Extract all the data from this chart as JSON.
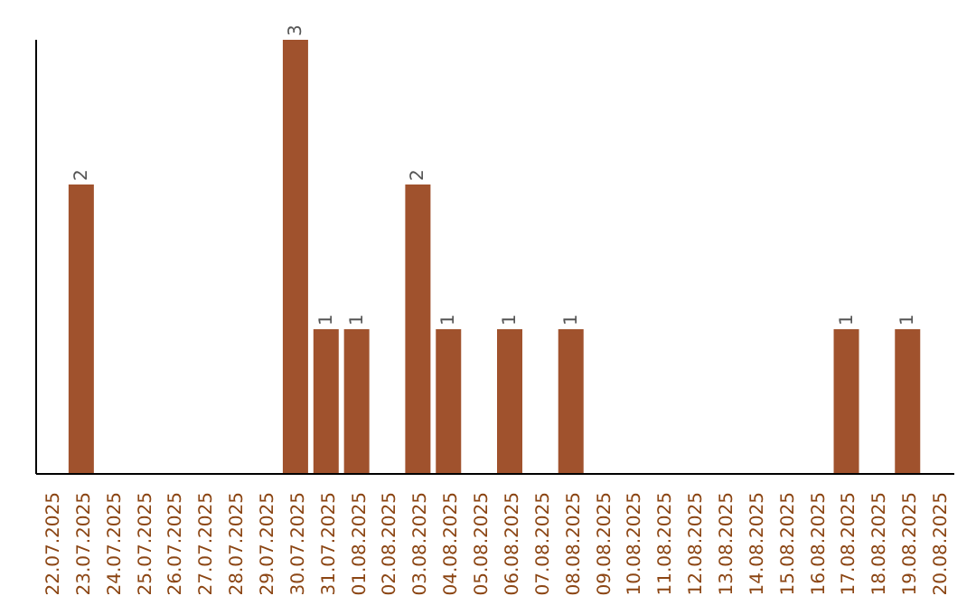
{
  "chart_data": {
    "type": "bar",
    "categories": [
      "22.07.2025",
      "23.07.2025",
      "24.07.2025",
      "25.07.2025",
      "26.07.2025",
      "27.07.2025",
      "28.07.2025",
      "29.07.2025",
      "30.07.2025",
      "31.07.2025",
      "01.08.2025",
      "02.08.2025",
      "03.08.2025",
      "04.08.2025",
      "05.08.2025",
      "06.08.2025",
      "07.08.2025",
      "08.08.2025",
      "09.08.2025",
      "10.08.2025",
      "11.08.2025",
      "12.08.2025",
      "13.08.2025",
      "14.08.2025",
      "15.08.2025",
      "16.08.2025",
      "17.08.2025",
      "18.08.2025",
      "19.08.2025",
      "20.08.2025"
    ],
    "values": [
      0,
      2,
      0,
      0,
      0,
      0,
      0,
      0,
      3,
      1,
      1,
      0,
      2,
      1,
      0,
      1,
      0,
      1,
      0,
      0,
      0,
      0,
      0,
      0,
      0,
      0,
      1,
      0,
      1,
      0
    ],
    "value_labels": [
      null,
      "2",
      null,
      null,
      null,
      null,
      null,
      null,
      "3",
      "1",
      "1",
      null,
      "2",
      "1",
      null,
      "1",
      null,
      "1",
      null,
      null,
      null,
      null,
      null,
      null,
      null,
      null,
      "1",
      null,
      "1",
      null
    ],
    "color": "#a0522d",
    "tick_labels": "x",
    "grid": false,
    "legend": false
  }
}
